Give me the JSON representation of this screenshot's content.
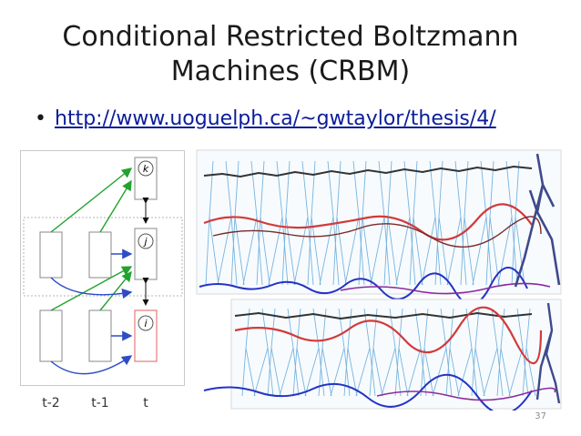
{
  "slide": {
    "title_line1": "Conditional Restricted Boltzmann",
    "title_line2": "Machines (CRBM)",
    "bullet_link": "http://www.uoguelph.ca/~gwtaylor/thesis/4/",
    "slide_number": "37"
  },
  "diagram": {
    "unit_labels": [
      "k",
      "j",
      "i"
    ],
    "time_labels": [
      "t-2",
      "t-1",
      "t"
    ],
    "colors": {
      "frame": "#b5b5b5",
      "box": "#8a8a8a",
      "visible_box": "#e06060",
      "green_arrow": "#22a32e",
      "blue_arrow": "#2f4bc6",
      "black_arrow": "#111111"
    }
  },
  "motion_figure": {
    "colors": {
      "skeleton": "#62a7d8",
      "dark_trace": "#333333",
      "red_trace": "#d23a3a",
      "blue_trace": "#2433c4",
      "purple_trace": "#8c2a9c",
      "final_pose": "#3f4a8a"
    }
  }
}
